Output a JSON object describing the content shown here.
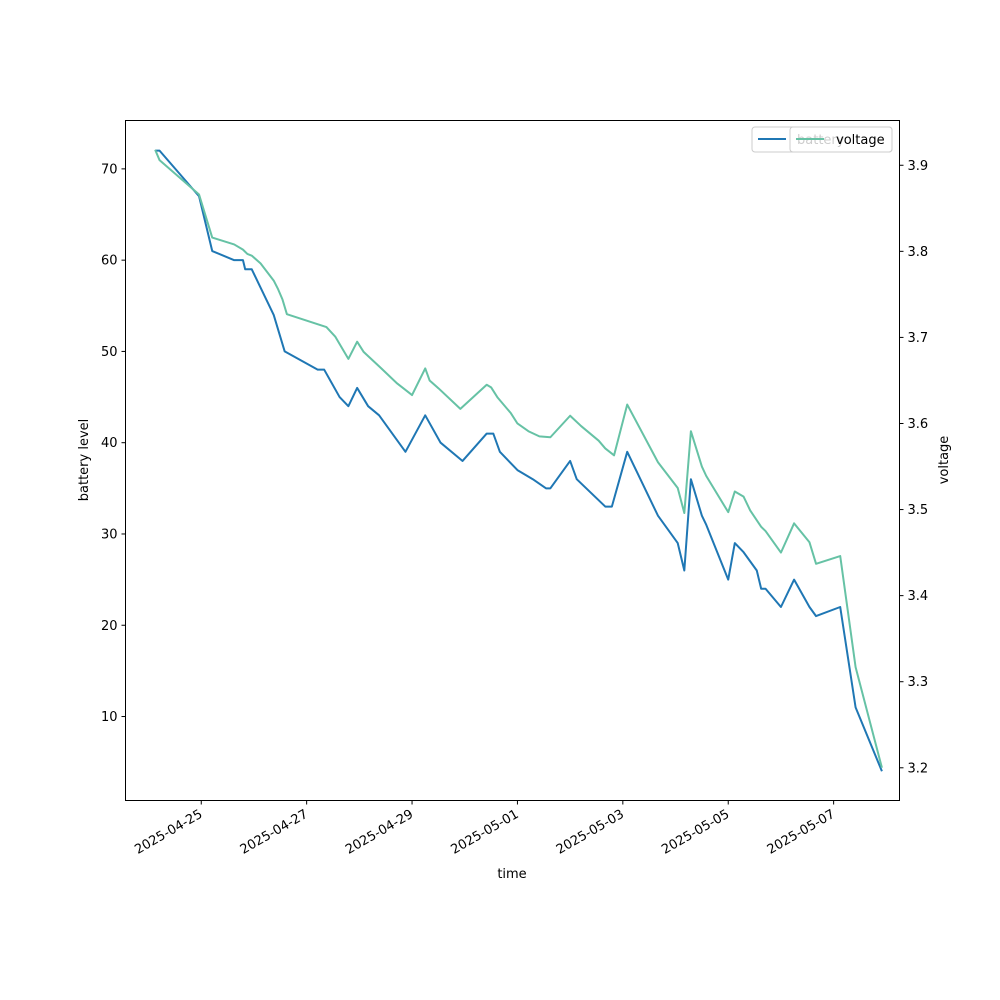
{
  "chart_data": {
    "type": "line",
    "xlabel": "time",
    "ylabel_left": "battery level",
    "ylabel_right": "voltage",
    "xlim": [
      "2025-04-23T13:30",
      "2025-05-08T06:00"
    ],
    "ylim_left": [
      0.8,
      75.3
    ],
    "ylim_right": [
      3.162,
      3.952
    ],
    "x_ticks": [
      "2025-04-25",
      "2025-04-27",
      "2025-04-29",
      "2025-05-01",
      "2025-05-03",
      "2025-05-05",
      "2025-05-07"
    ],
    "y_ticks_left": [
      10,
      20,
      30,
      40,
      50,
      60,
      70
    ],
    "y_ticks_right": [
      3.2,
      3.3,
      3.4,
      3.5,
      3.6,
      3.7,
      3.8,
      3.9
    ],
    "grid": false,
    "legend_placement": "top-right",
    "series": [
      {
        "name": "battery",
        "axis": "left",
        "color": "#1f77b4",
        "points": [
          [
            "2025-04-24T03:00",
            72
          ],
          [
            "2025-04-24T05:00",
            72
          ],
          [
            "2025-04-24T23:00",
            67
          ],
          [
            "2025-04-25T05:00",
            61
          ],
          [
            "2025-04-25T15:00",
            60
          ],
          [
            "2025-04-25T19:00",
            60
          ],
          [
            "2025-04-25T20:00",
            59
          ],
          [
            "2025-04-25T23:00",
            59
          ],
          [
            "2025-04-26T03:00",
            57
          ],
          [
            "2025-04-26T09:00",
            54
          ],
          [
            "2025-04-26T14:00",
            50
          ],
          [
            "2025-04-27T05:00",
            48
          ],
          [
            "2025-04-27T08:00",
            48
          ],
          [
            "2025-04-27T15:00",
            45
          ],
          [
            "2025-04-27T19:00",
            44
          ],
          [
            "2025-04-27T23:00",
            46
          ],
          [
            "2025-04-28T04:00",
            44
          ],
          [
            "2025-04-28T09:00",
            43
          ],
          [
            "2025-04-28T21:00",
            39
          ],
          [
            "2025-04-29T06:00",
            43
          ],
          [
            "2025-04-29T13:00",
            40
          ],
          [
            "2025-04-29T23:00",
            38
          ],
          [
            "2025-04-30T10:00",
            41
          ],
          [
            "2025-04-30T13:00",
            41
          ],
          [
            "2025-04-30T16:00",
            39
          ],
          [
            "2025-05-01T00:00",
            37
          ],
          [
            "2025-05-01T07:00",
            36
          ],
          [
            "2025-05-01T13:00",
            35
          ],
          [
            "2025-05-01T15:00",
            35
          ],
          [
            "2025-05-02T00:00",
            38
          ],
          [
            "2025-05-02T03:00",
            36
          ],
          [
            "2025-05-02T16:00",
            33
          ],
          [
            "2025-05-02T19:00",
            33
          ],
          [
            "2025-05-03T02:00",
            39
          ],
          [
            "2025-05-03T16:00",
            32
          ],
          [
            "2025-05-04T01:00",
            29
          ],
          [
            "2025-05-04T04:00",
            26
          ],
          [
            "2025-05-04T07:00",
            36
          ],
          [
            "2025-05-04T12:00",
            32
          ],
          [
            "2025-05-04T14:00",
            31
          ],
          [
            "2025-05-05T00:00",
            25
          ],
          [
            "2025-05-05T03:00",
            29
          ],
          [
            "2025-05-05T07:00",
            28
          ],
          [
            "2025-05-05T10:00",
            27
          ],
          [
            "2025-05-05T13:00",
            26
          ],
          [
            "2025-05-05T15:00",
            24
          ],
          [
            "2025-05-05T17:00",
            24
          ],
          [
            "2025-05-06T00:00",
            22
          ],
          [
            "2025-05-06T06:00",
            25
          ],
          [
            "2025-05-06T13:00",
            22
          ],
          [
            "2025-05-06T16:00",
            21
          ],
          [
            "2025-05-07T03:00",
            22
          ],
          [
            "2025-05-07T10:00",
            11
          ],
          [
            "2025-05-07T22:00",
            4
          ]
        ]
      },
      {
        "name": "voltage",
        "axis": "right",
        "color": "#66c2a5",
        "points": [
          [
            "2025-04-24T03:00",
            3.918
          ],
          [
            "2025-04-24T05:00",
            3.906
          ],
          [
            "2025-04-24T23:00",
            3.866
          ],
          [
            "2025-04-25T05:00",
            3.816
          ],
          [
            "2025-04-25T15:00",
            3.808
          ],
          [
            "2025-04-25T19:00",
            3.802
          ],
          [
            "2025-04-25T21:00",
            3.797
          ],
          [
            "2025-04-25T23:00",
            3.795
          ],
          [
            "2025-04-26T03:00",
            3.786
          ],
          [
            "2025-04-26T09:00",
            3.766
          ],
          [
            "2025-04-26T11:00",
            3.756
          ],
          [
            "2025-04-26T13:00",
            3.744
          ],
          [
            "2025-04-26T15:00",
            3.727
          ],
          [
            "2025-04-27T09:00",
            3.712
          ],
          [
            "2025-04-27T13:00",
            3.701
          ],
          [
            "2025-04-27T19:00",
            3.675
          ],
          [
            "2025-04-27T23:00",
            3.695
          ],
          [
            "2025-04-28T02:00",
            3.683
          ],
          [
            "2025-04-28T10:00",
            3.664
          ],
          [
            "2025-04-28T17:00",
            3.647
          ],
          [
            "2025-04-28T20:00",
            3.641
          ],
          [
            "2025-04-29T00:00",
            3.633
          ],
          [
            "2025-04-29T06:00",
            3.664
          ],
          [
            "2025-04-29T08:00",
            3.65
          ],
          [
            "2025-04-29T12:00",
            3.641
          ],
          [
            "2025-04-29T22:00",
            3.617
          ],
          [
            "2025-04-30T10:00",
            3.645
          ],
          [
            "2025-04-30T12:00",
            3.642
          ],
          [
            "2025-04-30T15:00",
            3.63
          ],
          [
            "2025-04-30T21:00",
            3.612
          ],
          [
            "2025-05-01T00:00",
            3.6
          ],
          [
            "2025-05-01T05:00",
            3.591
          ],
          [
            "2025-05-01T10:00",
            3.585
          ],
          [
            "2025-05-01T15:00",
            3.584
          ],
          [
            "2025-05-02T00:00",
            3.609
          ],
          [
            "2025-05-02T05:00",
            3.597
          ],
          [
            "2025-05-02T13:00",
            3.58
          ],
          [
            "2025-05-02T16:00",
            3.571
          ],
          [
            "2025-05-02T20:00",
            3.563
          ],
          [
            "2025-05-03T02:00",
            3.622
          ],
          [
            "2025-05-03T16:00",
            3.555
          ],
          [
            "2025-05-04T01:00",
            3.525
          ],
          [
            "2025-05-04T04:00",
            3.496
          ],
          [
            "2025-05-04T07:00",
            3.591
          ],
          [
            "2025-05-04T12:00",
            3.55
          ],
          [
            "2025-05-04T14:00",
            3.539
          ],
          [
            "2025-05-05T00:00",
            3.497
          ],
          [
            "2025-05-05T03:00",
            3.521
          ],
          [
            "2025-05-05T07:00",
            3.515
          ],
          [
            "2025-05-05T10:00",
            3.499
          ],
          [
            "2025-05-05T15:00",
            3.48
          ],
          [
            "2025-05-05T17:00",
            3.475
          ],
          [
            "2025-05-06T00:00",
            3.45
          ],
          [
            "2025-05-06T06:00",
            3.484
          ],
          [
            "2025-05-06T13:00",
            3.462
          ],
          [
            "2025-05-06T16:00",
            3.437
          ],
          [
            "2025-05-07T03:00",
            3.446
          ],
          [
            "2025-05-07T10:00",
            3.317
          ],
          [
            "2025-05-07T22:00",
            3.2
          ]
        ]
      }
    ]
  }
}
